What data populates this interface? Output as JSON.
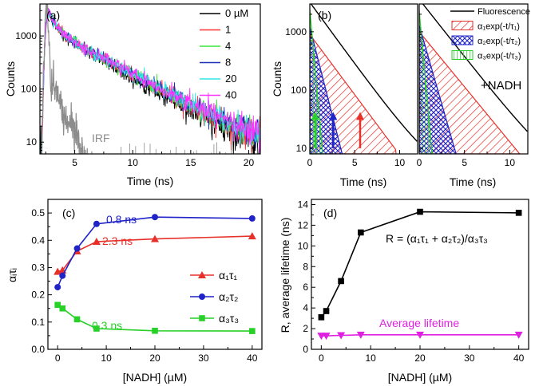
{
  "figure": {
    "panel_labels": [
      "(a)",
      "(b)",
      "(c)",
      "(d)"
    ]
  },
  "chart_data": [
    {
      "id": "a",
      "type": "line",
      "title": "",
      "xlabel": "Time (ns)",
      "ylabel": "Counts",
      "xlim": [
        2,
        21
      ],
      "ylim": [
        6,
        4000
      ],
      "yscale": "log",
      "xticks": [
        5,
        10,
        15,
        20
      ],
      "yticks": [
        10,
        100,
        1000
      ],
      "peak_time": 2.7,
      "peak_counts": 3000,
      "series": [
        {
          "name": "0 µM",
          "color": "#000000",
          "tau_decay": 3.4,
          "noise": 0.09
        },
        {
          "name": "1",
          "color": "#ff3030",
          "tau_decay": 3.6,
          "noise": 0.09
        },
        {
          "name": "4",
          "color": "#39e639",
          "tau_decay": 3.65,
          "noise": 0.09
        },
        {
          "name": "8",
          "color": "#1e2fb5",
          "tau_decay": 3.7,
          "noise": 0.09
        },
        {
          "name": "20",
          "color": "#33e6e6",
          "tau_decay": 3.75,
          "noise": 0.09
        },
        {
          "name": "40",
          "color": "#ff33ff",
          "tau_decay": 3.75,
          "noise": 0.09
        }
      ],
      "irf": {
        "name": "IRF",
        "color": "#8c8c8c",
        "peak": 2.6,
        "width": 0.45,
        "tail_end": 9
      },
      "annotations": [
        "IRF"
      ]
    },
    {
      "id": "b",
      "type": "area",
      "xlabel": "Time (ns)",
      "ylabel": "Counts",
      "xlim": [
        0,
        12
      ],
      "ylim": [
        8,
        3000
      ],
      "yscale": "log",
      "xticks": [
        0,
        5,
        10
      ],
      "yticks": [
        10,
        100,
        1000
      ],
      "legend": [
        {
          "label": "Fluorescence",
          "style": "line",
          "color": "#000000"
        },
        {
          "label": "α₁exp(-t/τ₁)",
          "style": "hatch-red",
          "color": "#e8302a"
        },
        {
          "label": "α₂exp(-t/τ₂)",
          "style": "crosshatch-blue",
          "color": "#1f23c8"
        },
        {
          "label": "α₃exp(-t/τ₃)",
          "style": "lines-green",
          "color": "#27d127"
        }
      ],
      "subpanels": [
        {
          "label": "",
          "fluor_amplitude": 3200,
          "fluor_tau": 2.05,
          "components": [
            {
              "name": "α₁exp(-t/τ₁)",
              "a0": 900,
              "tau": 2.1,
              "end": 9.6
            },
            {
              "name": "α₂exp(-t/τ₂)",
              "a0": 1200,
              "tau": 0.72,
              "end": 4.0
            },
            {
              "name": "α₃exp(-t/τ₃)",
              "a0": 2400,
              "tau": 0.25,
              "end": 1.6
            }
          ],
          "arrows": [
            {
              "color": "#e8302a",
              "x": 5.6,
              "from": 10,
              "to": 42
            },
            {
              "color": "#1f23c8",
              "x": 2.6,
              "from": 10,
              "to": 42
            },
            {
              "color": "#27d127",
              "x": 0.6,
              "from": 10,
              "to": 42
            }
          ]
        },
        {
          "label": "+NADH",
          "fluor_amplitude": 3600,
          "fluor_tau": 2.2,
          "components": [
            {
              "name": "α₁exp(-t/τ₁)",
              "a0": 1000,
              "tau": 2.3,
              "end": 11.2
            },
            {
              "name": "α₂exp(-t/τ₂)",
              "a0": 1300,
              "tau": 0.8,
              "end": 4.8
            },
            {
              "name": "α₃exp(-t/τ₃)",
              "a0": 2300,
              "tau": 0.25,
              "end": 1.6
            }
          ],
          "arrows": []
        }
      ]
    },
    {
      "id": "c",
      "type": "line",
      "xlabel": "[NADH] (µM)",
      "ylabel": "αᵢτᵢ",
      "xlim": [
        -2,
        42
      ],
      "ylim": [
        0.0,
        0.55
      ],
      "xticks": [
        0,
        10,
        20,
        30,
        40
      ],
      "yticks": [
        0.0,
        0.1,
        0.2,
        0.3,
        0.4,
        0.5
      ],
      "x": [
        0,
        1,
        4,
        8,
        20,
        40
      ],
      "series": [
        {
          "name": "α₁τ₁",
          "color": "#e8302a",
          "marker": "triangle",
          "values": [
            0.285,
            0.29,
            0.36,
            0.395,
            0.405,
            0.415
          ],
          "annotation": "2.3 ns"
        },
        {
          "name": "α₂τ₂",
          "color": "#1f23c8",
          "marker": "circle",
          "values": [
            0.228,
            0.27,
            0.37,
            0.46,
            0.485,
            0.48
          ],
          "annotation": "0.8 ns"
        },
        {
          "name": "α₃τ₃",
          "color": "#27d127",
          "marker": "square",
          "values": [
            0.163,
            0.15,
            0.11,
            0.076,
            0.068,
            0.067
          ],
          "annotation": "0.3 ns"
        }
      ]
    },
    {
      "id": "d",
      "type": "line",
      "xlabel": "[NADH] (µM)",
      "ylabel": "R, average lifetime (ns)",
      "xlim": [
        -2,
        42
      ],
      "ylim": [
        0,
        14.5
      ],
      "xticks": [
        0,
        10,
        20,
        30,
        40
      ],
      "yticks": [
        0,
        2,
        4,
        6,
        8,
        10,
        12,
        14
      ],
      "x": [
        0,
        1,
        4,
        8,
        20,
        40
      ],
      "equation": "R = (α₁τ₁ + α₂τ₂)/α₃τ₃",
      "series": [
        {
          "name": "R",
          "color": "#000000",
          "marker": "square",
          "values": [
            3.1,
            3.7,
            6.6,
            11.3,
            13.3,
            13.2
          ]
        },
        {
          "name": "Average lifetime",
          "color": "#e020e0",
          "marker": "triangle-down",
          "values": [
            1.3,
            1.3,
            1.35,
            1.4,
            1.4,
            1.4
          ]
        }
      ]
    }
  ]
}
